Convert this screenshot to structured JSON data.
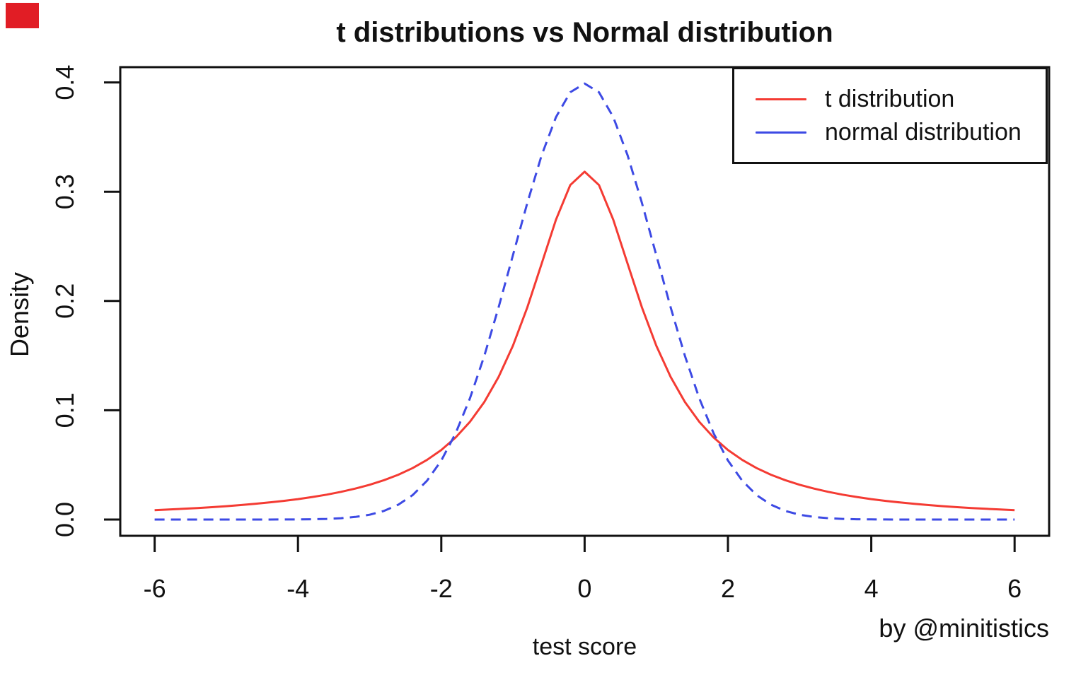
{
  "decorations": {
    "red_corner_square_color": "#e11d25"
  },
  "chart_data": {
    "type": "line",
    "title": "t distributions vs Normal distribution",
    "xlabel": "test score",
    "ylabel": "Density",
    "attribution": "by @minitistics",
    "grid": false,
    "axis_color": "#111111",
    "xlim": [
      -6.48,
      6.48
    ],
    "ylim": [
      -0.015,
      0.414
    ],
    "x_tick_values": [
      -6,
      -4,
      -2,
      0,
      2,
      4,
      6
    ],
    "x_tick_labels": [
      "-6",
      "-4",
      "-2",
      "0",
      "2",
      "4",
      "6"
    ],
    "y_tick_values": [
      0.0,
      0.1,
      0.2,
      0.3,
      0.4
    ],
    "y_tick_labels": [
      "0.0",
      "0.1",
      "0.2",
      "0.3",
      "0.4"
    ],
    "legend": {
      "position": "top-right"
    },
    "x": [
      -6,
      -5.8,
      -5.6,
      -5.4,
      -5.2,
      -5,
      -4.8,
      -4.6,
      -4.4,
      -4.2,
      -4,
      -3.8,
      -3.6,
      -3.4,
      -3.2,
      -3,
      -2.8,
      -2.6,
      -2.4,
      -2.2,
      -2,
      -1.8,
      -1.6,
      -1.4,
      -1.2,
      -1,
      -0.8,
      -0.6,
      -0.4,
      -0.2,
      0,
      0.2,
      0.4,
      0.6,
      0.8,
      1,
      1.2,
      1.4,
      1.6,
      1.8,
      2,
      2.2,
      2.4,
      2.6,
      2.8,
      3,
      3.2,
      3.4,
      3.6,
      3.8,
      4,
      4.2,
      4.4,
      4.6,
      4.8,
      5,
      5.2,
      5.4,
      5.6,
      5.8,
      6
    ],
    "series": [
      {
        "name": "t distribution",
        "color": "#f43b33",
        "line_style": "solid",
        "values": [
          0.0086,
          0.00919,
          0.00984,
          0.01055,
          0.01135,
          0.01224,
          0.01324,
          0.01436,
          0.01563,
          0.01708,
          0.01872,
          0.02062,
          0.0228,
          0.02534,
          0.02832,
          0.03183,
          0.03601,
          0.04102,
          0.04709,
          0.0545,
          0.06366,
          0.07507,
          0.08941,
          0.10753,
          0.13045,
          0.15915,
          0.19409,
          0.23405,
          0.27441,
          0.30607,
          0.31831,
          0.30607,
          0.27441,
          0.23405,
          0.19409,
          0.15915,
          0.13045,
          0.10753,
          0.08941,
          0.07507,
          0.06366,
          0.0545,
          0.04709,
          0.04102,
          0.03601,
          0.03183,
          0.02832,
          0.02534,
          0.0228,
          0.02062,
          0.01872,
          0.01708,
          0.01563,
          0.01436,
          0.01324,
          0.01224,
          0.01135,
          0.01055,
          0.00984,
          0.00919,
          0.0086
        ]
      },
      {
        "name": "normal distribution",
        "color": "#3d4ae4",
        "line_style": "dashed",
        "values": [
          0,
          0,
          0,
          0,
          0,
          1.5e-06,
          4e-06,
          1e-05,
          2e-05,
          6e-05,
          0.00013,
          0.00029,
          0.00061,
          0.00123,
          0.00238,
          0.00443,
          0.00792,
          0.01358,
          0.02239,
          0.03547,
          0.05399,
          0.07895,
          0.11092,
          0.14973,
          0.19419,
          0.24197,
          0.28969,
          0.33322,
          0.36827,
          0.39104,
          0.39894,
          0.39104,
          0.36827,
          0.33322,
          0.28969,
          0.24197,
          0.19419,
          0.14973,
          0.11092,
          0.07895,
          0.05399,
          0.03547,
          0.02239,
          0.01358,
          0.00792,
          0.00443,
          0.00238,
          0.00123,
          0.00061,
          0.00029,
          0.00013,
          6e-05,
          2e-05,
          1e-05,
          4e-06,
          1.5e-06,
          0,
          0,
          0,
          0,
          0
        ]
      }
    ]
  }
}
